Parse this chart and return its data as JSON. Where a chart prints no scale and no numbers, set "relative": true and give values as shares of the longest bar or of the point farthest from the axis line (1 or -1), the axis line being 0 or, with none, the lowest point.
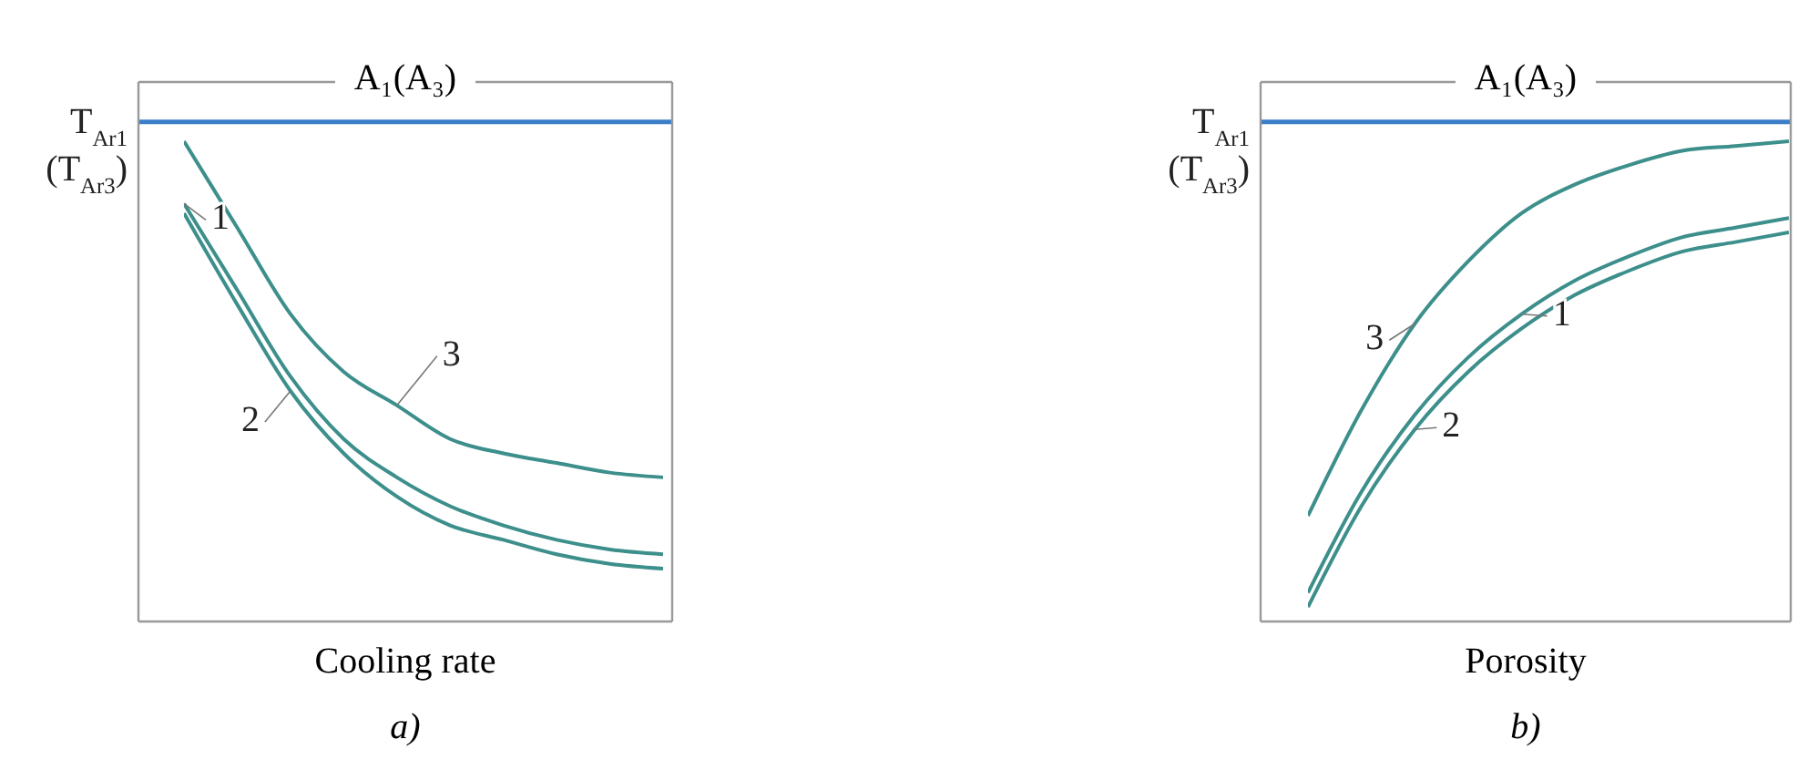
{
  "chart_data": [
    {
      "type": "line",
      "relative": true,
      "xlabel": "Cooling rate",
      "categories": [
        null,
        null,
        null,
        null,
        null,
        null,
        null,
        null,
        null,
        null
      ],
      "series": [
        {
          "name": "1",
          "color": "#3d8f8c",
          "values": [
            0.87,
            0.69,
            0.51,
            0.38,
            0.3,
            0.24,
            0.2,
            0.17,
            0.15,
            0.14
          ]
        },
        {
          "name": "2",
          "color": "#3d8f8c",
          "values": [
            0.85,
            0.66,
            0.48,
            0.35,
            0.26,
            0.2,
            0.17,
            0.14,
            0.12,
            0.11
          ]
        },
        {
          "name": "3",
          "color": "#3d8f8c",
          "values": [
            1.0,
            0.82,
            0.64,
            0.52,
            0.45,
            0.38,
            0.35,
            0.33,
            0.31,
            0.3
          ]
        }
      ],
      "ref_lines": [
        {
          "axis": "y",
          "value": 1.04,
          "label": "T$_{Ar1}$ (T$_{Ar3}$)",
          "color": "#3b7ec8"
        }
      ],
      "annotations": [
        "A₁(A₃)",
        "a)"
      ]
    },
    {
      "type": "line",
      "relative": true,
      "xlabel": "Porosity",
      "categories": [
        null,
        null,
        null,
        null,
        null,
        null,
        null,
        null,
        null,
        null
      ],
      "series": [
        {
          "name": "1",
          "color": "#3d8f8c",
          "values": [
            0.06,
            0.27,
            0.43,
            0.55,
            0.64,
            0.71,
            0.76,
            0.8,
            0.82,
            0.84
          ]
        },
        {
          "name": "2",
          "color": "#3d8f8c",
          "values": [
            0.03,
            0.24,
            0.4,
            0.52,
            0.61,
            0.68,
            0.73,
            0.77,
            0.79,
            0.81
          ]
        },
        {
          "name": "3",
          "color": "#3d8f8c",
          "values": [
            0.22,
            0.44,
            0.62,
            0.75,
            0.85,
            0.91,
            0.95,
            0.98,
            0.99,
            1.0
          ]
        }
      ],
      "ref_lines": [
        {
          "axis": "y",
          "value": 1.04,
          "label": "T$_{Ar1}$ (T$_{Ar3}$)",
          "color": "#3b7ec8"
        }
      ],
      "annotations": [
        "A₁(A₃)",
        "b)"
      ]
    }
  ]
}
